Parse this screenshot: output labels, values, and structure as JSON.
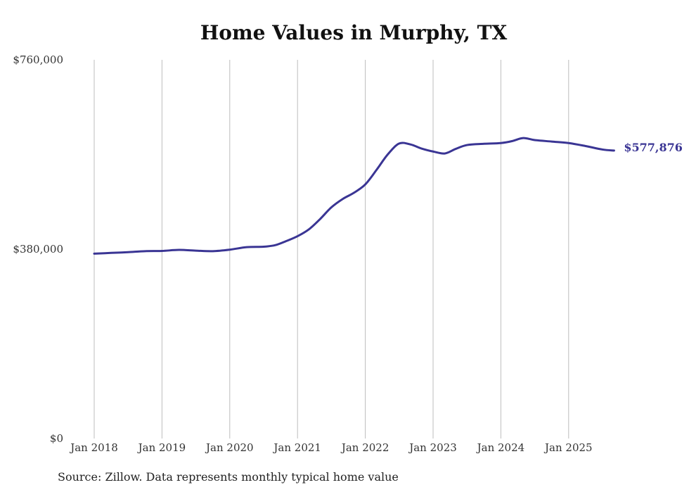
{
  "chart_data": {
    "type": "line",
    "title": "Home Values in Murphy, TX",
    "xlabel": "",
    "ylabel": "",
    "ylim": [
      0,
      760000
    ],
    "xlim": [
      2018.0,
      2025.72
    ],
    "grid": "vertical",
    "y_ticks": [
      {
        "value": 0,
        "label": "$0"
      },
      {
        "value": 380000,
        "label": "$380,000"
      },
      {
        "value": 760000,
        "label": "$760,000"
      }
    ],
    "x_ticks": [
      {
        "value": 2018,
        "label": "Jan 2018"
      },
      {
        "value": 2019,
        "label": "Jan 2019"
      },
      {
        "value": 2020,
        "label": "Jan 2020"
      },
      {
        "value": 2021,
        "label": "Jan 2021"
      },
      {
        "value": 2022,
        "label": "Jan 2022"
      },
      {
        "value": 2023,
        "label": "Jan 2023"
      },
      {
        "value": 2024,
        "label": "Jan 2024"
      },
      {
        "value": 2025,
        "label": "Jan 2025"
      }
    ],
    "series": [
      {
        "name": "Typical home value",
        "color": "#3a3594",
        "end_label": "$577,876",
        "points": [
          [
            2018.0,
            371000
          ],
          [
            2018.25,
            372500
          ],
          [
            2018.5,
            374000
          ],
          [
            2018.75,
            376000
          ],
          [
            2019.0,
            376500
          ],
          [
            2019.25,
            378500
          ],
          [
            2019.5,
            377000
          ],
          [
            2019.75,
            376000
          ],
          [
            2020.0,
            379000
          ],
          [
            2020.25,
            384000
          ],
          [
            2020.5,
            385000
          ],
          [
            2020.67,
            388000
          ],
          [
            2020.83,
            396000
          ],
          [
            2021.0,
            406000
          ],
          [
            2021.17,
            420000
          ],
          [
            2021.33,
            440000
          ],
          [
            2021.5,
            464000
          ],
          [
            2021.67,
            481000
          ],
          [
            2021.83,
            493000
          ],
          [
            2022.0,
            510000
          ],
          [
            2022.17,
            540000
          ],
          [
            2022.33,
            570000
          ],
          [
            2022.5,
            592000
          ],
          [
            2022.67,
            590000
          ],
          [
            2022.83,
            582000
          ],
          [
            2023.0,
            576000
          ],
          [
            2023.17,
            572000
          ],
          [
            2023.33,
            581000
          ],
          [
            2023.5,
            589000
          ],
          [
            2023.75,
            591500
          ],
          [
            2024.0,
            593000
          ],
          [
            2024.17,
            597000
          ],
          [
            2024.33,
            603000
          ],
          [
            2024.5,
            599000
          ],
          [
            2024.75,
            596000
          ],
          [
            2025.0,
            593000
          ],
          [
            2025.25,
            587000
          ],
          [
            2025.5,
            580000
          ],
          [
            2025.67,
            577876
          ]
        ]
      }
    ],
    "source_text": "Source: Zillow. Data represents monthly typical home value"
  }
}
